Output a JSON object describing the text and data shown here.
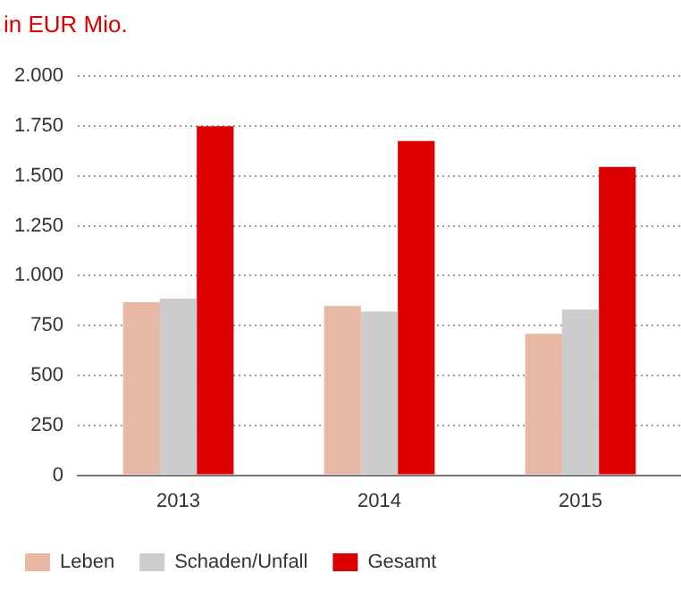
{
  "chart_data": {
    "type": "bar",
    "title": "in EUR Mio.",
    "categories": [
      "2013",
      "2014",
      "2015"
    ],
    "series": [
      {
        "name": "Leben",
        "color": "#e8b8a4",
        "values": [
          867,
          848,
          709
        ]
      },
      {
        "name": "Schaden/Unfall",
        "color": "#cccccc",
        "values": [
          885,
          820,
          830
        ]
      },
      {
        "name": "Gesamt",
        "color": "#dc0000",
        "values": [
          1749,
          1675,
          1545
        ]
      }
    ],
    "ylim": [
      0,
      2000
    ],
    "yticks": [
      0,
      250,
      500,
      750,
      {
        "value": 1000,
        "label": "1.000"
      },
      {
        "value": 1250,
        "label": "1.250"
      },
      {
        "value": 1500,
        "label": "1.500"
      },
      {
        "value": 1750,
        "label": "1.750"
      },
      {
        "value": 2000,
        "label": "2.000"
      }
    ],
    "grid": "y",
    "legend": "bottom"
  }
}
